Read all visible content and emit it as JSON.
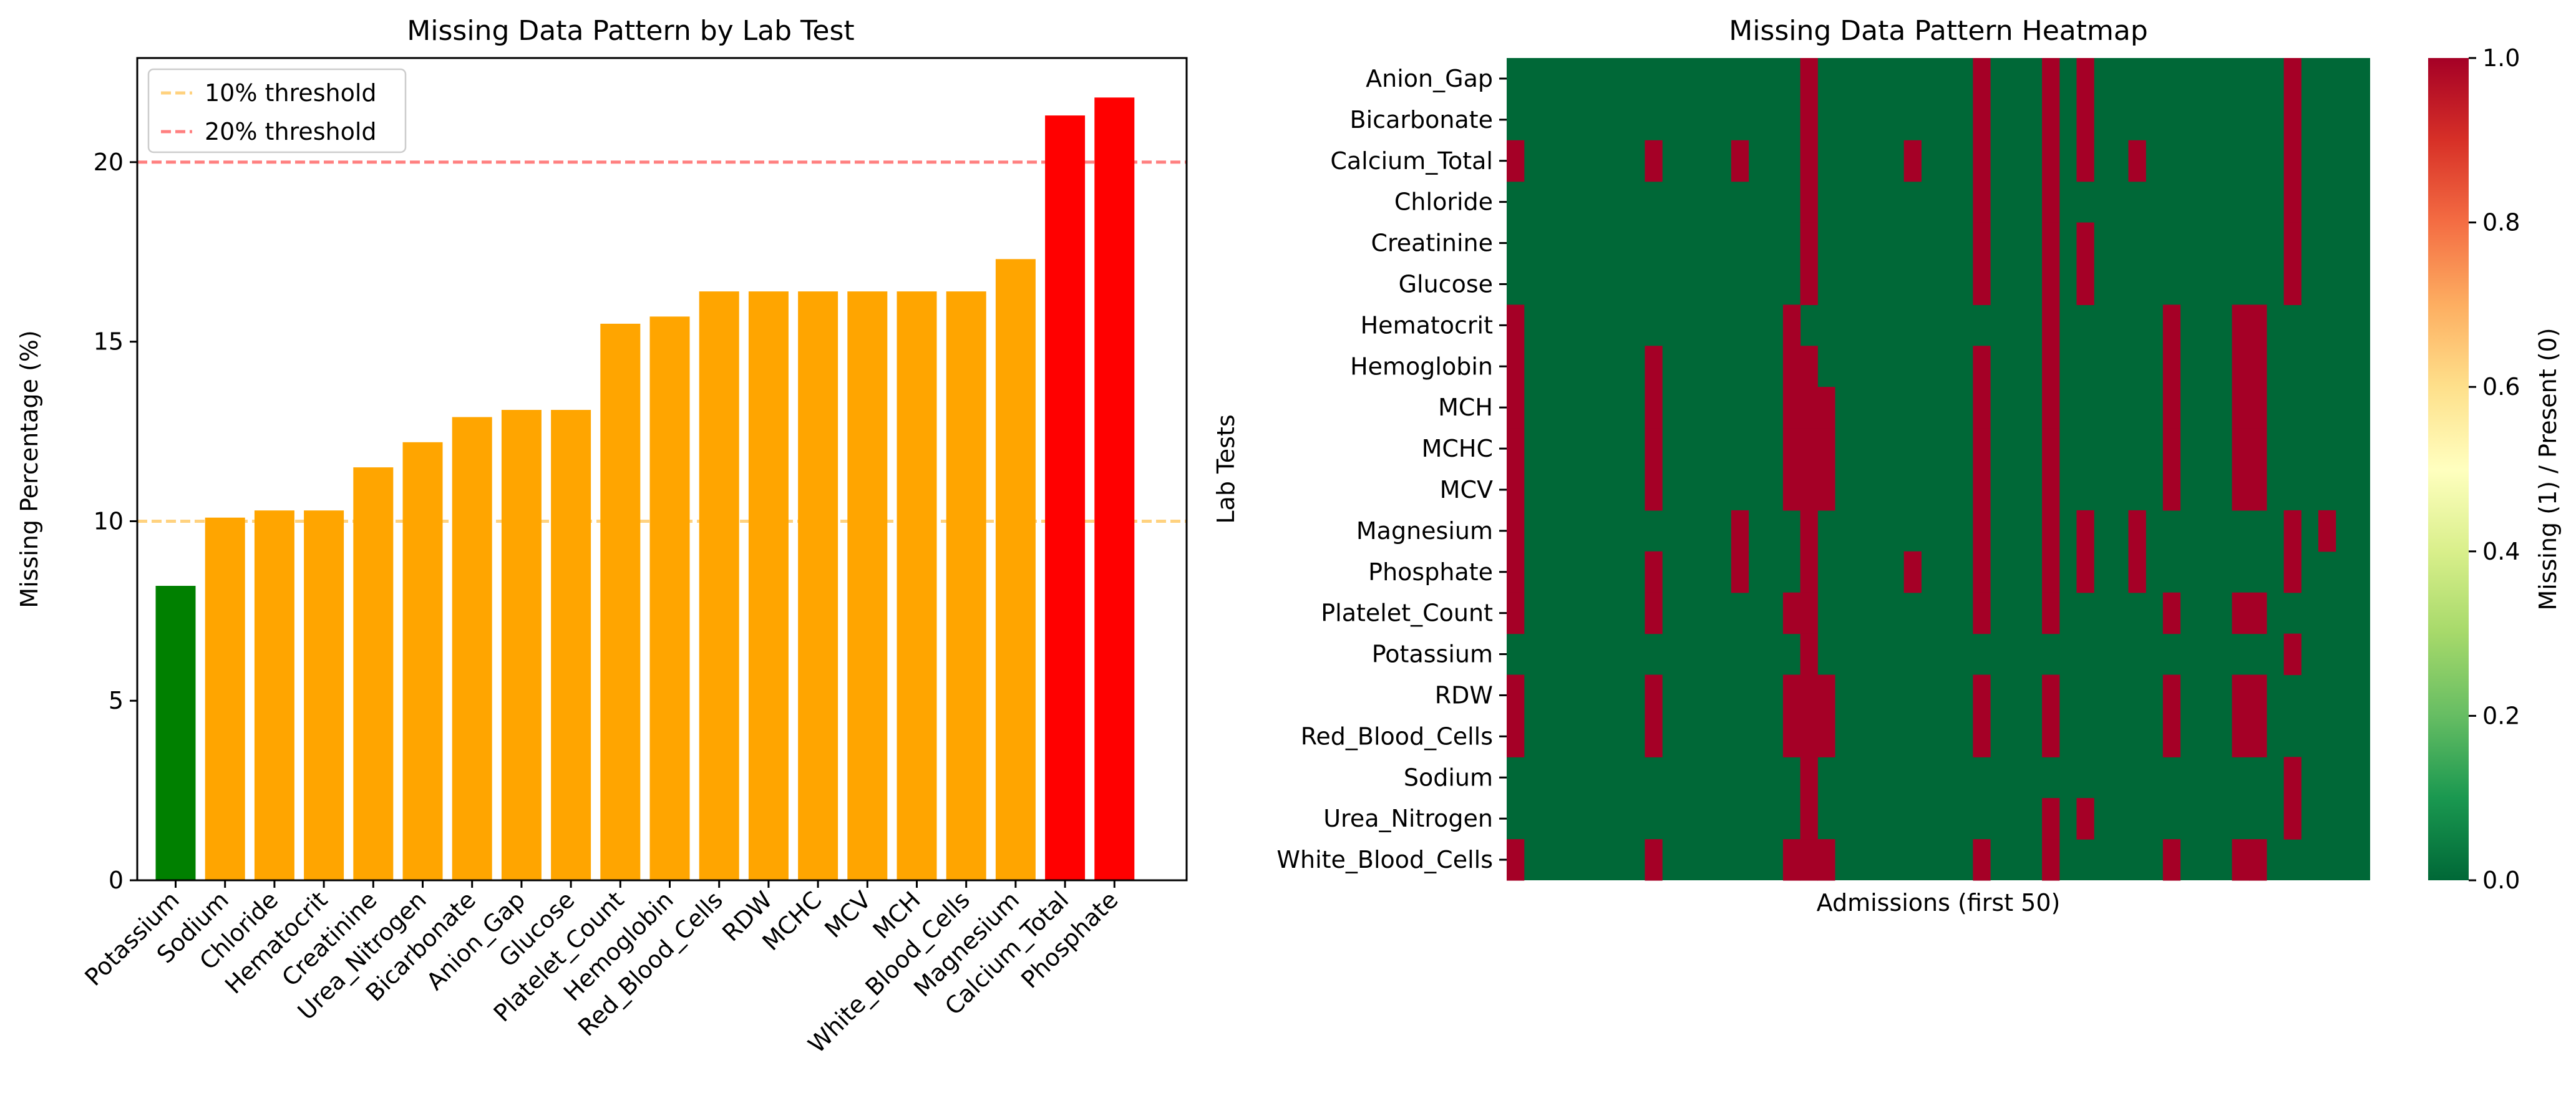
{
  "chart_data": [
    {
      "type": "bar",
      "title": "Missing Data Pattern by Lab Test",
      "xlabel": "",
      "ylabel": "Missing Percentage (%)",
      "ylim": [
        0,
        22.9
      ],
      "yticks": [
        0,
        5,
        10,
        15,
        20
      ],
      "categories": [
        "Potassium",
        "Sodium",
        "Chloride",
        "Hematocrit",
        "Creatinine",
        "Urea_Nitrogen",
        "Bicarbonate",
        "Anion_Gap",
        "Glucose",
        "Platelet_Count",
        "Hemoglobin",
        "Red_Blood_Cells",
        "RDW",
        "MCHC",
        "MCV",
        "MCH",
        "White_Blood_Cells",
        "Magnesium",
        "Calcium_Total",
        "Phosphate"
      ],
      "values": [
        8.2,
        10.1,
        10.3,
        10.3,
        11.5,
        12.2,
        12.9,
        13.1,
        13.1,
        15.5,
        15.7,
        16.4,
        16.4,
        16.4,
        16.4,
        16.4,
        16.4,
        17.3,
        21.3,
        21.8
      ],
      "bar_colors": [
        "#008000",
        "#ffa500",
        "#ffa500",
        "#ffa500",
        "#ffa500",
        "#ffa500",
        "#ffa500",
        "#ffa500",
        "#ffa500",
        "#ffa500",
        "#ffa500",
        "#ffa500",
        "#ffa500",
        "#ffa500",
        "#ffa500",
        "#ffa500",
        "#ffa500",
        "#ffa500",
        "#ff0000",
        "#ff0000"
      ],
      "threshold_lines": [
        {
          "value": 10,
          "label": "10% threshold",
          "color": "#ffa500"
        },
        {
          "value": 20,
          "label": "20% threshold",
          "color": "#ff0000"
        }
      ],
      "legend": "upper-left",
      "grid": false
    },
    {
      "type": "heatmap",
      "title": "Missing Data Pattern Heatmap",
      "xlabel": "Admissions (first 50)",
      "ylabel": "Lab Tests",
      "n_cols": 50,
      "rows": [
        "Anion_Gap",
        "Bicarbonate",
        "Calcium_Total",
        "Chloride",
        "Creatinine",
        "Glucose",
        "Hematocrit",
        "Hemoglobin",
        "MCH",
        "MCHC",
        "MCV",
        "Magnesium",
        "Phosphate",
        "Platelet_Count",
        "Potassium",
        "RDW",
        "Red_Blood_Cells",
        "Sodium",
        "Urea_Nitrogen",
        "White_Blood_Cells"
      ],
      "missing_columns": [
        [
          17,
          27,
          31,
          33,
          45
        ],
        [
          17,
          27,
          31,
          33,
          45
        ],
        [
          0,
          8,
          13,
          17,
          23,
          27,
          31,
          33,
          36,
          45
        ],
        [
          17,
          27,
          31,
          45
        ],
        [
          17,
          27,
          31,
          33,
          45
        ],
        [
          17,
          27,
          31,
          33,
          45
        ],
        [
          0,
          16,
          31,
          38,
          42,
          43
        ],
        [
          0,
          8,
          16,
          17,
          27,
          31,
          38,
          42,
          43
        ],
        [
          0,
          8,
          16,
          17,
          18,
          27,
          31,
          38,
          42,
          43
        ],
        [
          0,
          8,
          16,
          17,
          18,
          27,
          31,
          38,
          42,
          43
        ],
        [
          0,
          8,
          16,
          17,
          18,
          27,
          31,
          38,
          42,
          43
        ],
        [
          0,
          13,
          17,
          27,
          31,
          33,
          36,
          45,
          47
        ],
        [
          0,
          8,
          13,
          17,
          23,
          27,
          31,
          33,
          36,
          45
        ],
        [
          0,
          8,
          16,
          17,
          27,
          31,
          38,
          42,
          43
        ],
        [
          17,
          45
        ],
        [
          0,
          8,
          16,
          17,
          18,
          27,
          31,
          38,
          42,
          43
        ],
        [
          0,
          8,
          16,
          17,
          18,
          27,
          31,
          38,
          42,
          43
        ],
        [
          17,
          45
        ],
        [
          17,
          31,
          33,
          45
        ],
        [
          0,
          8,
          16,
          17,
          18,
          27,
          31,
          38,
          42,
          43
        ]
      ],
      "colormap": "RdYlGn_r",
      "colors": {
        "present": "#006837",
        "missing": "#a50026"
      },
      "colorbar": {
        "label": "Missing (1) / Present (0)",
        "ticks": [
          "0.0",
          "0.2",
          "0.4",
          "0.6",
          "0.8",
          "1.0"
        ],
        "range": [
          0,
          1
        ],
        "stops": [
          "#006837",
          "#1a9850",
          "#66bd63",
          "#a6d96a",
          "#d9ef8b",
          "#ffffbf",
          "#fee08b",
          "#fdae61",
          "#f46d43",
          "#d73027",
          "#a50026"
        ]
      }
    }
  ]
}
